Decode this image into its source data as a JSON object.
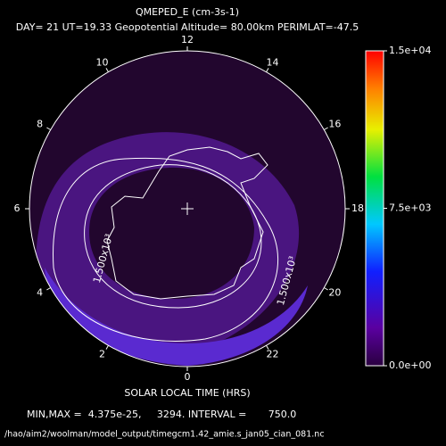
{
  "title": "QMEPED_E (cm-3s-1)",
  "subtitle": "DAY= 21 UT=19.33 Geopotential Altitude= 80.00km PERIMLAT=-47.5",
  "hour_labels": [
    0,
    2,
    4,
    6,
    8,
    10,
    12,
    14,
    16,
    18,
    20,
    22
  ],
  "axis_label": "SOLAR LOCAL TIME (HRS)",
  "contour_labels": [
    "1.500x10³",
    "1.500x10³"
  ],
  "colorbar": {
    "lim": [
      0,
      15000
    ],
    "ticks": [
      {
        "value": 0,
        "label": "0.0e+00"
      },
      {
        "value": 7500,
        "label": "7.5e+03"
      },
      {
        "value": 15000,
        "label": "1.5e+04"
      }
    ]
  },
  "footer": {
    "stats": "MIN,MAX =  4.375e-25,     3294. INTERVAL =       750.0",
    "file": "/hao/aim2/woolman/model_output/timegcm1.42_amie.s_jan05_cian_081.nc"
  }
}
